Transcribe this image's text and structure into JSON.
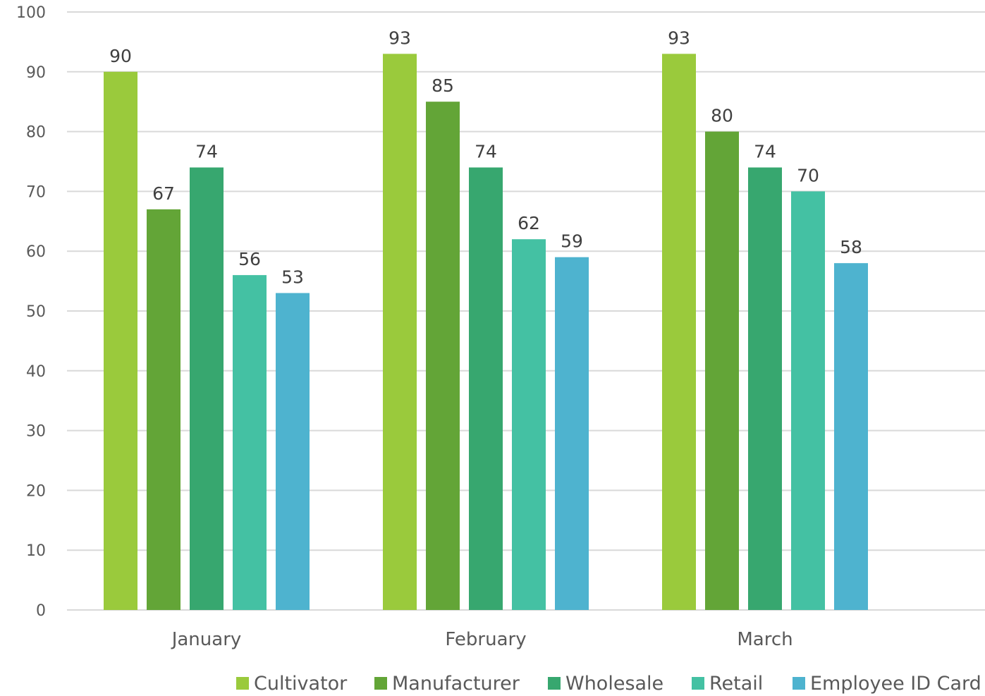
{
  "chart_data": {
    "type": "bar",
    "categories": [
      "January",
      "February",
      "March"
    ],
    "series": [
      {
        "name": "Cultivator",
        "color": "#9ACA3C",
        "values": [
          90,
          93,
          93
        ]
      },
      {
        "name": "Manufacturer",
        "color": "#63A537",
        "values": [
          67,
          85,
          80
        ]
      },
      {
        "name": "Wholesale",
        "color": "#37A76F",
        "values": [
          74,
          74,
          74
        ]
      },
      {
        "name": "Retail",
        "color": "#44C1A3",
        "values": [
          56,
          62,
          70
        ]
      },
      {
        "name": "Employee ID Card",
        "color": "#4EB3CF",
        "values": [
          53,
          59,
          58
        ]
      }
    ],
    "ylim": [
      0,
      100
    ],
    "yticks": [
      "0",
      "10",
      "20",
      "30",
      "40",
      "50",
      "60",
      "70",
      "80",
      "90",
      "100"
    ],
    "grid": true,
    "legend_position": "bottom-right",
    "data_labels": true
  }
}
